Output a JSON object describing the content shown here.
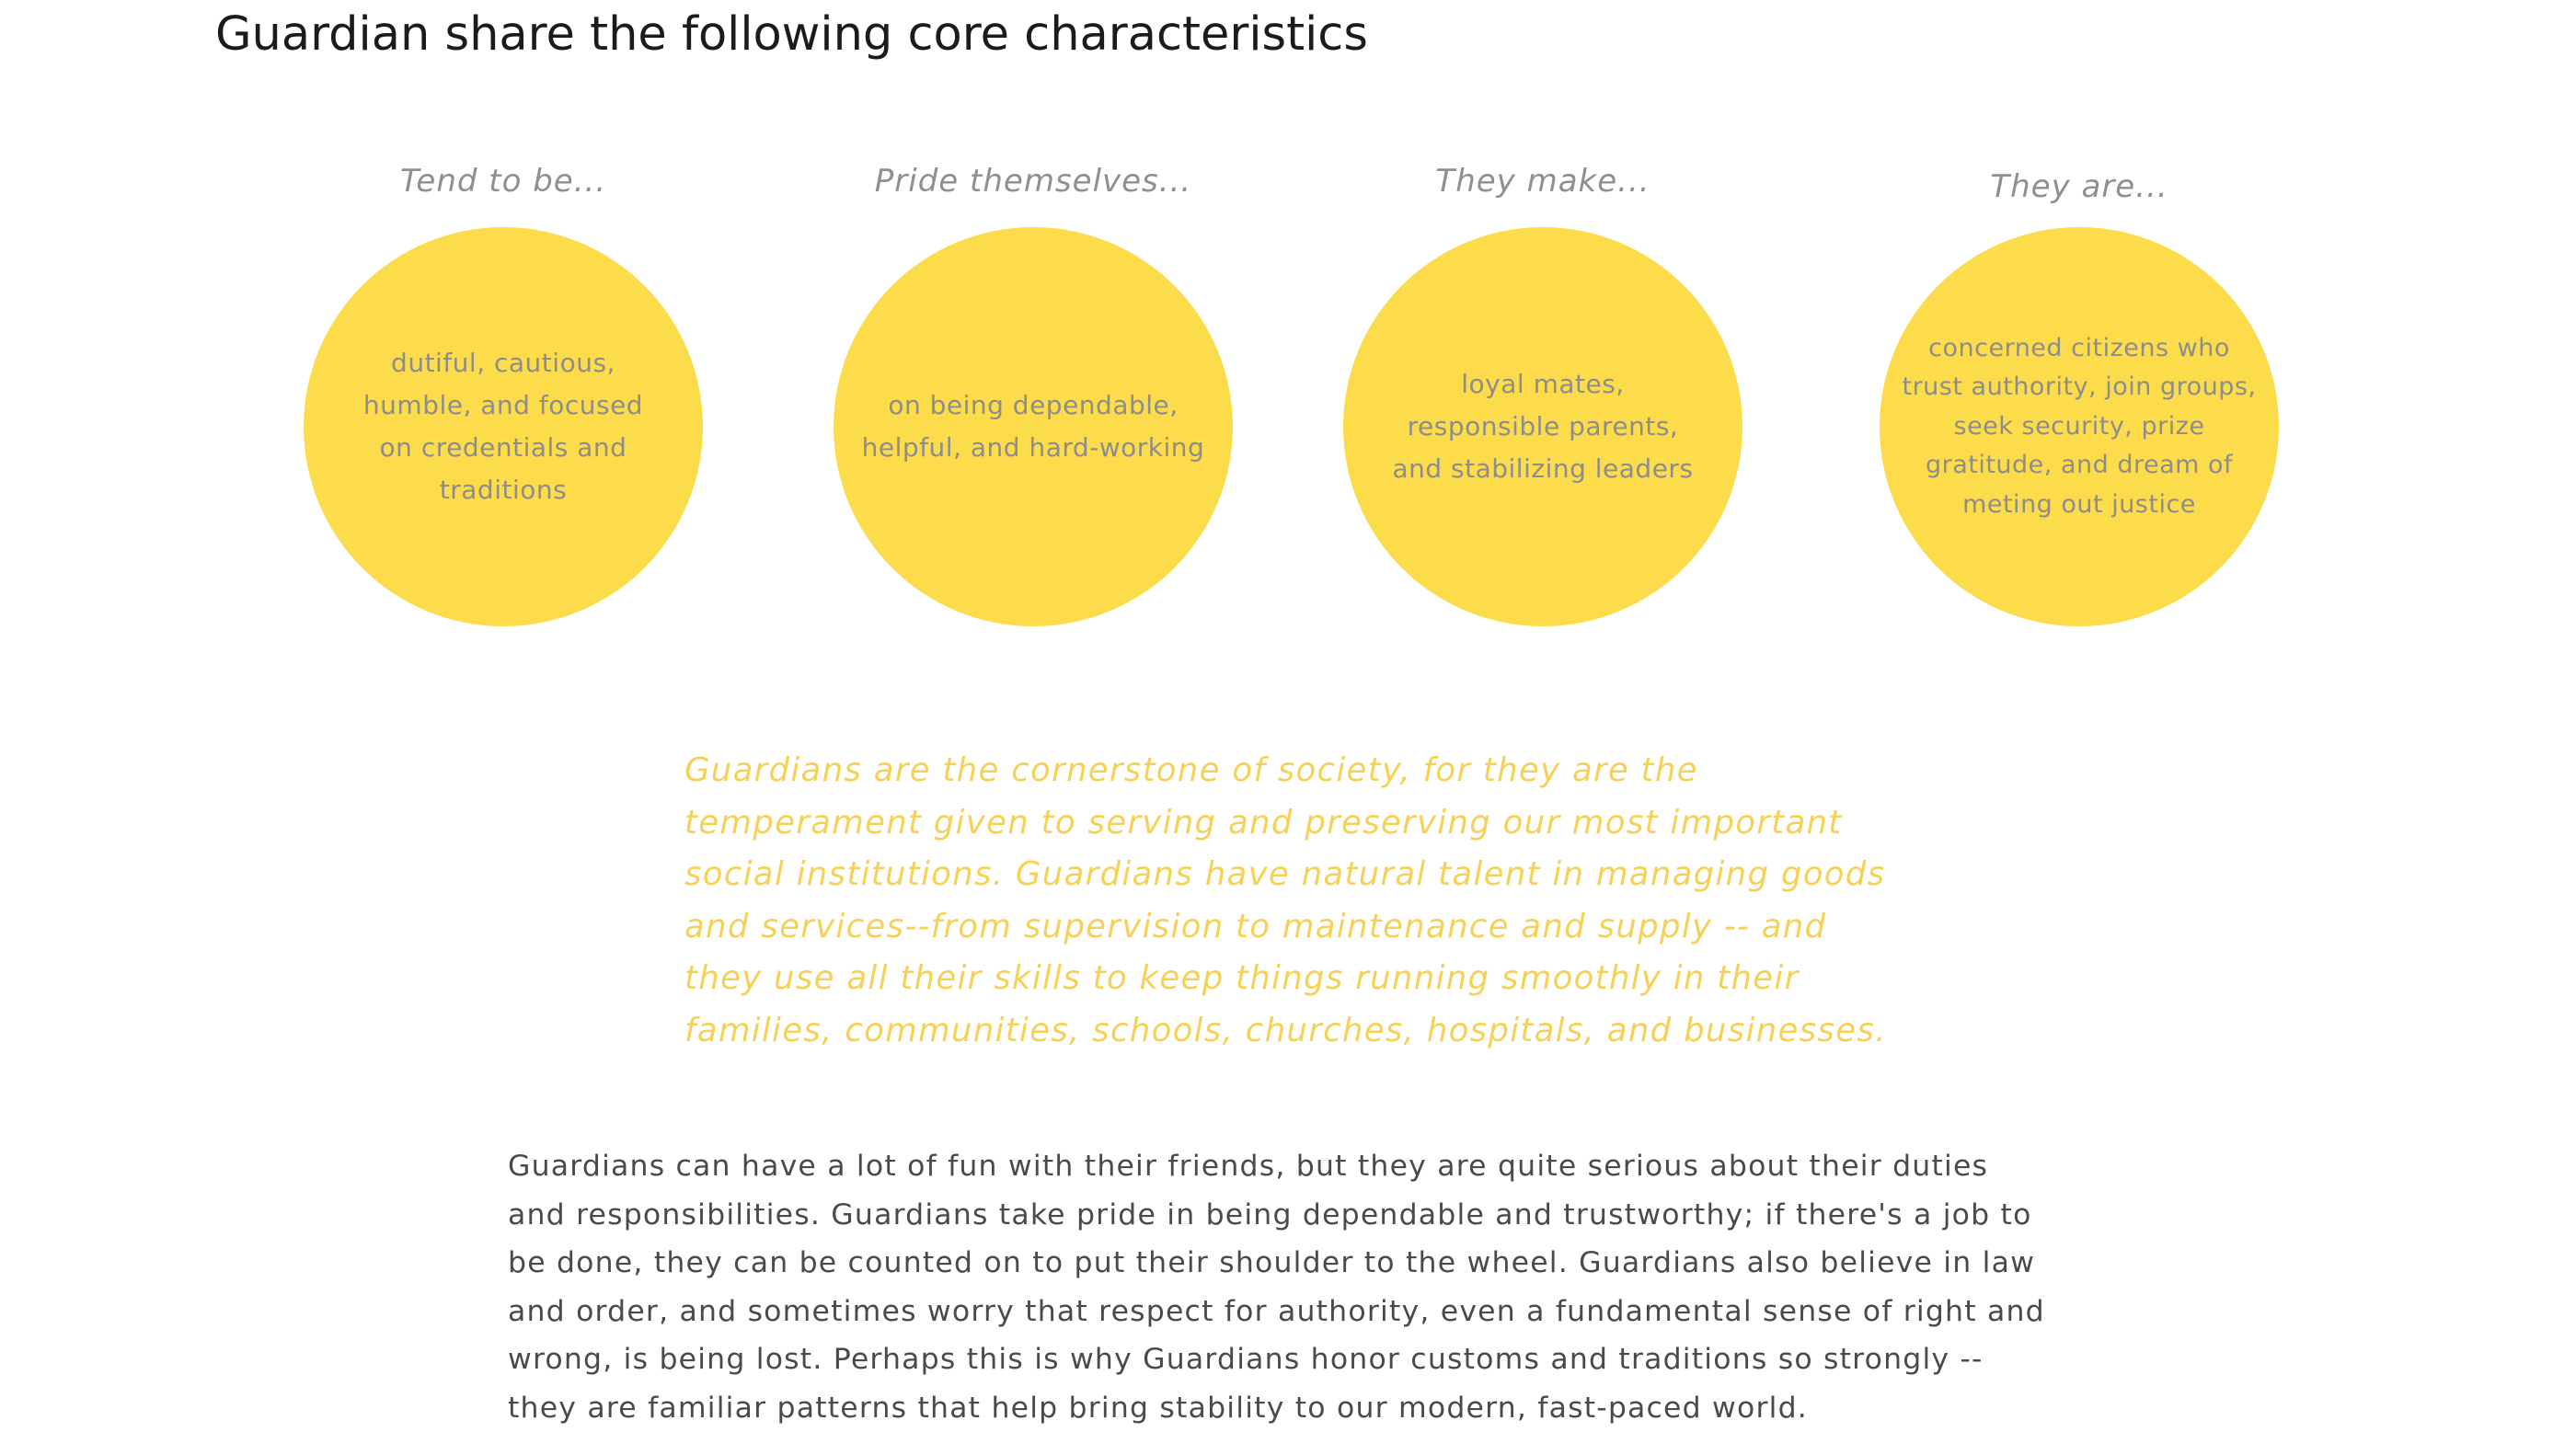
{
  "page": {
    "title": "Guardian share the following core characteristics"
  },
  "traits": [
    {
      "label": "Tend to be...",
      "text": "dutiful, cautious, humble, and focused on credentials and traditions"
    },
    {
      "label": "Pride themselves...",
      "text": "on being dependable, helpful, and hard-working"
    },
    {
      "label": "They make...",
      "text": "loyal mates, responsible parents, and stabilizing leaders"
    },
    {
      "label": "They are...",
      "text": "concerned citizens who trust authority, join groups, seek security, prize gratitude, and dream of meting out justice"
    }
  ],
  "quote": "Guardians are the cornerstone of society, for they are the temperament given to serving and preserving our most important social institutions. Guardians have natural talent in managing goods and services--from supervision to maintenance and supply -- and they use all their skills to keep things running smoothly in their families, communities, schools, churches, hospitals, and businesses.",
  "body": "Guardians can have a lot of fun with their friends, but they are quite serious about their duties and responsibilities. Guardians take pride in being dependable and trustworthy; if there's a job to be done, they can be counted on to put their shoulder to the wheel. Guardians also believe in law and order, and sometimes worry that respect for authority, even a fundamental sense of right and wrong, is being lost. Perhaps this is why Guardians honor customs and traditions so strongly -- they are familiar patterns that help bring stability to our modern, fast-paced world.",
  "colors": {
    "circle": "#fcdc4a",
    "quote": "#f5d257",
    "label": "#8f8f8f",
    "circle_text": "#8d8d8d",
    "body_text": "#4a4a4a",
    "heading": "#1b1b1b"
  }
}
